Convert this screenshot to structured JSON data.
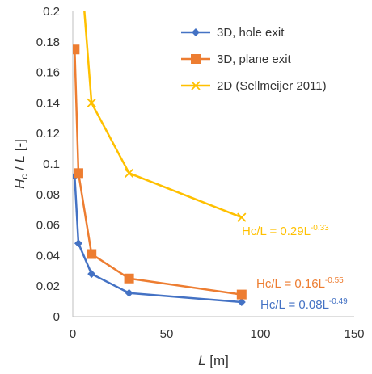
{
  "chart_data": {
    "type": "line",
    "xlabel": {
      "var": "L",
      "unit": " [m]"
    },
    "ylabel": {
      "var": "H",
      "sub": "c",
      "rest": " / ",
      "var2": "L",
      "unit": " [-]"
    },
    "xlim": [
      0,
      150
    ],
    "ylim": [
      0,
      0.2
    ],
    "xticks": [
      0,
      50,
      100,
      150
    ],
    "yticks": [
      0,
      0.02,
      0.04,
      0.06,
      0.08,
      0.1,
      0.12,
      0.14,
      0.16,
      0.18,
      0.2
    ],
    "ytick_labels": [
      "0",
      "0.02",
      "0.04",
      "0.06",
      "0.08",
      "0.1",
      "0.12",
      "0.14",
      "0.16",
      "0.18",
      "0.2"
    ],
    "xtick_labels": [
      "0",
      "50",
      "100",
      "150"
    ],
    "grid": false,
    "legend_position": "top-right",
    "series": [
      {
        "name": "3D, hole exit",
        "color": "#4472C4",
        "marker": "diamond",
        "x": [
          1,
          3,
          10,
          30,
          90
        ],
        "y": [
          0.092,
          0.048,
          0.028,
          0.0155,
          0.0095
        ],
        "annotation": {
          "prefix": "Hc/L = 0.08L",
          "exp": "-0.49"
        }
      },
      {
        "name": "3D, plane exit",
        "color": "#ED7D31",
        "marker": "square",
        "x": [
          1,
          3,
          10,
          30,
          90
        ],
        "y": [
          0.175,
          0.094,
          0.041,
          0.025,
          0.0145
        ],
        "annotation": {
          "prefix": "Hc/L = 0.16L",
          "exp": "-0.55"
        }
      },
      {
        "name": "2D (Sellmeijer 2011)",
        "color": "#FFC000",
        "marker": "x",
        "x": [
          3,
          10,
          30,
          90
        ],
        "y": [
          0.25,
          0.14,
          0.094,
          0.065
        ],
        "annotation": {
          "prefix": "Hc/L = 0.29L",
          "exp": "-0.33"
        }
      }
    ]
  }
}
